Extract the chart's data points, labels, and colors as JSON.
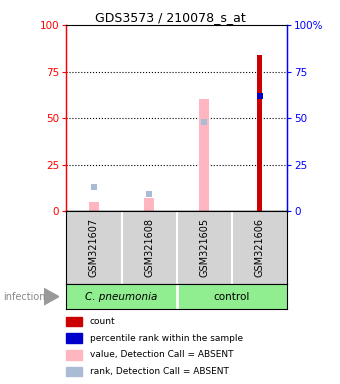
{
  "title": "GDS3573 / 210078_s_at",
  "samples": [
    "GSM321607",
    "GSM321608",
    "GSM321605",
    "GSM321606"
  ],
  "ylim": [
    0,
    100
  ],
  "yticks": [
    0,
    25,
    50,
    75,
    100
  ],
  "count_values": [
    null,
    null,
    null,
    84
  ],
  "count_color": "#CC0000",
  "pct_rank_values": [
    null,
    null,
    null,
    62
  ],
  "pct_rank_color": "#0000CC",
  "value_absent_values": [
    5,
    7,
    60,
    null
  ],
  "value_absent_color": "#FFB6C1",
  "rank_absent_values": [
    13,
    9,
    48,
    null
  ],
  "rank_absent_color": "#AABBD4",
  "bg_sample": "#D3D3D3",
  "group1_color": "#90EE90",
  "group2_color": "#90EE90",
  "legend_items": [
    {
      "label": "count",
      "color": "#CC0000",
      "marker": "s"
    },
    {
      "label": "percentile rank within the sample",
      "color": "#0000CC",
      "marker": "s"
    },
    {
      "label": "value, Detection Call = ABSENT",
      "color": "#FFB6C1",
      "marker": "s"
    },
    {
      "label": "rank, Detection Call = ABSENT",
      "color": "#AABBD4",
      "marker": "s"
    }
  ]
}
